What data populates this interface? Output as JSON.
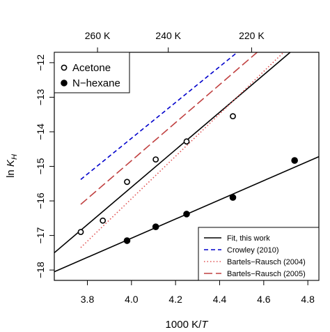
{
  "chart_data": {
    "type": "scatter",
    "title": "",
    "xlabel_prefix": "1000 K/",
    "xlabel_var": "T",
    "ylabel_prefix": "ln ",
    "ylabel_var": "K",
    "ylabel_sub": "H",
    "xlim": [
      3.65,
      4.85
    ],
    "ylim": [
      -18.3,
      -11.7
    ],
    "x_ticks": [
      3.8,
      4.0,
      4.2,
      4.4,
      4.6,
      4.8
    ],
    "x_tick_labels": [
      "3.8",
      "4.0",
      "4.2",
      "4.4",
      "4.6",
      "4.8"
    ],
    "y_ticks": [
      -18,
      -17,
      -16,
      -15,
      -14,
      -13,
      -12
    ],
    "y_tick_labels": [
      "−18",
      "−17",
      "−16",
      "−15",
      "−14",
      "−13",
      "−12"
    ],
    "top_axis": {
      "ticks": [
        3.846,
        4.167,
        4.545
      ],
      "labels": [
        "260 K",
        "240 K",
        "220 K"
      ]
    },
    "grid": false,
    "series": [
      {
        "name": "Acetone",
        "marker": "open-circle",
        "color": "#000000",
        "x": [
          3.77,
          3.87,
          3.98,
          4.11,
          4.25,
          4.46
        ],
        "y": [
          -16.9,
          -16.57,
          -15.45,
          -14.8,
          -14.28,
          -13.55
        ]
      },
      {
        "name": "N−hexane",
        "marker": "filled-circle",
        "color": "#000000",
        "x": [
          3.98,
          4.11,
          4.25,
          4.46,
          4.74
        ],
        "y": [
          -17.15,
          -16.75,
          -16.38,
          -15.9,
          -14.83
        ]
      }
    ],
    "lines": [
      {
        "name": "Fit, this work",
        "style": "solid",
        "color": "#000000",
        "x": [
          3.65,
          4.72
        ],
        "y": [
          -17.5,
          -11.7
        ]
      },
      {
        "name": "Fit, this work",
        "style": "solid",
        "color": "#000000",
        "x": [
          3.65,
          4.85
        ],
        "y": [
          -18.05,
          -14.72
        ]
      },
      {
        "name": "Crowley (2010)",
        "style": "short-dash",
        "color": "#0000cc",
        "x": [
          3.77,
          4.48
        ],
        "y": [
          -15.38,
          -11.7
        ]
      },
      {
        "name": "Bartels−Rausch (2004)",
        "style": "dotted",
        "color": "#e05050",
        "x": [
          3.77,
          4.69
        ],
        "y": [
          -17.35,
          -11.7
        ]
      },
      {
        "name": "Bartels−Rausch (2005)",
        "style": "long-dash",
        "color": "#c04040",
        "x": [
          3.77,
          4.57
        ],
        "y": [
          -16.1,
          -11.7
        ]
      }
    ],
    "marker_legend": {
      "position": "top-left",
      "entries": [
        {
          "label": "Acetone",
          "marker": "open-circle"
        },
        {
          "label": "N−hexane",
          "marker": "filled-circle"
        }
      ]
    },
    "line_legend": {
      "position": "bottom-right",
      "entries": [
        {
          "label": "Fit, this work",
          "style": "solid",
          "color": "#000000"
        },
        {
          "label": "Crowley (2010)",
          "style": "short-dash",
          "color": "#0000cc"
        },
        {
          "label": "Bartels−Rausch (2004)",
          "style": "dotted",
          "color": "#e05050"
        },
        {
          "label": "Bartels−Rausch (2005)",
          "style": "long-dash",
          "color": "#c04040"
        }
      ]
    }
  }
}
